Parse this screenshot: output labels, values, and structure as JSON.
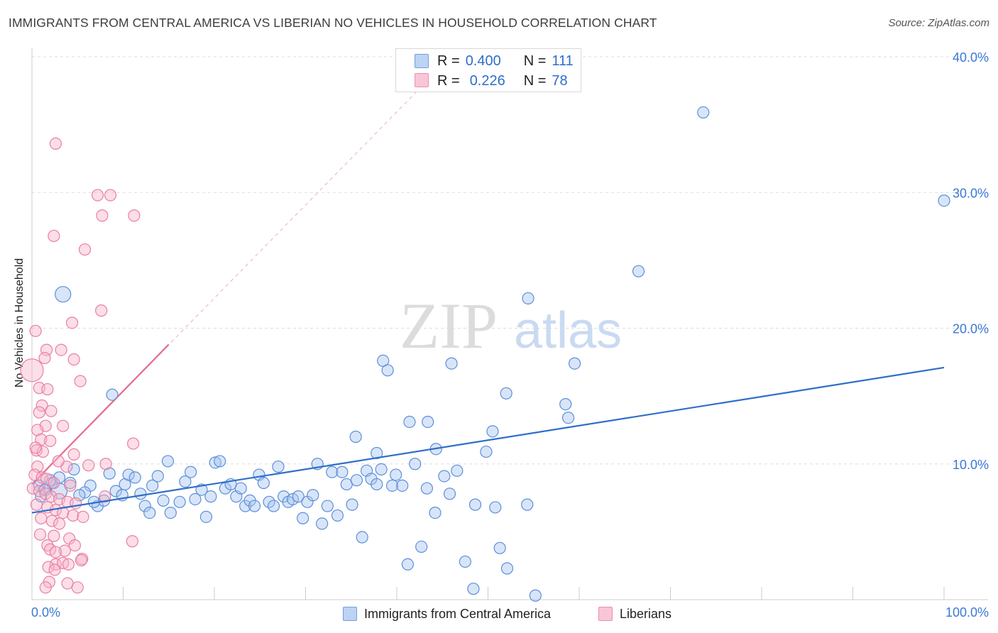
{
  "header": {
    "title": "IMMIGRANTS FROM CENTRAL AMERICA VS LIBERIAN NO VEHICLES IN HOUSEHOLD CORRELATION CHART",
    "source": "Source: ZipAtlas.com"
  },
  "watermark": {
    "part1": "ZIP",
    "part2": "atlas"
  },
  "legend": {
    "r_label": "R =",
    "n_label": "N =",
    "rows": [
      {
        "r": "0.400",
        "n": "111",
        "color": "#a9c6ef",
        "border": "#6e9fe0"
      },
      {
        "r": "0.226",
        "n": "78",
        "color": "#f6b6ca",
        "border": "#ec8fae"
      }
    ]
  },
  "bottom_legend": {
    "items": [
      {
        "label": "Immigrants from Central America",
        "color": "#bcd3f4",
        "border": "#6e9fe0"
      },
      {
        "label": "Liberians",
        "color": "#f8c6d6",
        "border": "#ec8fae"
      }
    ]
  },
  "chart_data": {
    "type": "scatter",
    "title": "IMMIGRANTS FROM CENTRAL AMERICA VS LIBERIAN NO VEHICLES IN HOUSEHOLD CORRELATION CHART",
    "xlabel": "",
    "ylabel": "No Vehicles in Household",
    "xlim": [
      0,
      100
    ],
    "ylim": [
      0,
      40
    ],
    "x_tick_labels": [
      "0.0%",
      "100.0%"
    ],
    "y_tick_labels": [
      "10.0%",
      "20.0%",
      "30.0%",
      "40.0%"
    ],
    "y_ticks": [
      10,
      20,
      30,
      40
    ],
    "grid": true,
    "legend_position": "top-center",
    "colors": {
      "blue_fill": "#a9c6ef",
      "blue_stroke": "#5b8fd9",
      "blue_line": "#2f6ec9",
      "pink_fill": "#f6b6ca",
      "pink_stroke": "#e97fa2",
      "pink_line": "#e56b8f",
      "axis_text": "#3a78d6"
    },
    "series": [
      {
        "name": "Immigrants from Central America",
        "R": 0.4,
        "N": 111,
        "trend": {
          "x": [
            0,
            100
          ],
          "y": [
            6.4,
            17.1
          ]
        },
        "points": [
          [
            73.6,
            35.9
          ],
          [
            100,
            29.4
          ],
          [
            66.5,
            24.2
          ],
          [
            54.4,
            22.2
          ],
          [
            3.4,
            22.5
          ],
          [
            38.5,
            17.6
          ],
          [
            39.0,
            16.9
          ],
          [
            46.0,
            17.4
          ],
          [
            59.5,
            17.4
          ],
          [
            52.0,
            15.2
          ],
          [
            58.5,
            14.4
          ],
          [
            8.8,
            15.1
          ],
          [
            41.4,
            13.1
          ],
          [
            43.4,
            13.1
          ],
          [
            58.8,
            13.4
          ],
          [
            50.5,
            12.4
          ],
          [
            35.5,
            12.0
          ],
          [
            44.3,
            11.1
          ],
          [
            37.8,
            10.8
          ],
          [
            49.8,
            10.9
          ],
          [
            3.0,
            8.0
          ],
          [
            2.2,
            8.6
          ],
          [
            1.5,
            8.1
          ],
          [
            0.8,
            8.4
          ],
          [
            1.0,
            7.6
          ],
          [
            4.6,
            9.6
          ],
          [
            6.4,
            8.4
          ],
          [
            5.8,
            7.9
          ],
          [
            5.2,
            7.7
          ],
          [
            7.2,
            6.9
          ],
          [
            7.9,
            7.3
          ],
          [
            8.5,
            9.3
          ],
          [
            9.2,
            8.0
          ],
          [
            9.9,
            7.7
          ],
          [
            10.2,
            8.5
          ],
          [
            10.6,
            9.2
          ],
          [
            11.3,
            9.0
          ],
          [
            11.9,
            7.8
          ],
          [
            12.4,
            6.9
          ],
          [
            12.9,
            6.4
          ],
          [
            13.2,
            8.4
          ],
          [
            13.8,
            9.1
          ],
          [
            14.4,
            7.3
          ],
          [
            14.9,
            10.2
          ],
          [
            15.2,
            6.4
          ],
          [
            16.2,
            7.2
          ],
          [
            16.8,
            8.7
          ],
          [
            17.4,
            9.4
          ],
          [
            17.9,
            7.4
          ],
          [
            18.6,
            8.1
          ],
          [
            19.1,
            6.1
          ],
          [
            19.6,
            7.6
          ],
          [
            20.1,
            10.1
          ],
          [
            20.6,
            10.2
          ],
          [
            21.2,
            8.2
          ],
          [
            21.8,
            8.5
          ],
          [
            22.4,
            7.6
          ],
          [
            22.9,
            8.2
          ],
          [
            23.4,
            6.9
          ],
          [
            23.9,
            7.3
          ],
          [
            24.4,
            6.9
          ],
          [
            24.9,
            9.2
          ],
          [
            25.4,
            8.6
          ],
          [
            26.0,
            7.2
          ],
          [
            26.5,
            6.9
          ],
          [
            27.0,
            9.8
          ],
          [
            27.6,
            7.6
          ],
          [
            28.1,
            7.2
          ],
          [
            28.6,
            7.4
          ],
          [
            29.2,
            7.6
          ],
          [
            29.7,
            6.0
          ],
          [
            30.2,
            7.2
          ],
          [
            30.8,
            7.7
          ],
          [
            31.3,
            10.0
          ],
          [
            31.8,
            5.6
          ],
          [
            32.4,
            6.9
          ],
          [
            32.9,
            9.4
          ],
          [
            33.5,
            6.2
          ],
          [
            34.0,
            9.4
          ],
          [
            34.5,
            8.5
          ],
          [
            35.1,
            7.0
          ],
          [
            35.6,
            8.8
          ],
          [
            36.2,
            4.6
          ],
          [
            36.7,
            9.5
          ],
          [
            37.2,
            8.9
          ],
          [
            37.8,
            8.5
          ],
          [
            38.3,
            9.6
          ],
          [
            39.5,
            8.4
          ],
          [
            39.9,
            9.2
          ],
          [
            40.6,
            8.4
          ],
          [
            41.2,
            2.6
          ],
          [
            42.0,
            10.0
          ],
          [
            42.7,
            3.9
          ],
          [
            43.3,
            8.2
          ],
          [
            44.2,
            6.4
          ],
          [
            45.2,
            9.1
          ],
          [
            45.8,
            7.8
          ],
          [
            46.6,
            9.5
          ],
          [
            48.4,
            0.8
          ],
          [
            48.6,
            7.0
          ],
          [
            50.8,
            6.8
          ],
          [
            51.3,
            3.8
          ],
          [
            52.1,
            2.3
          ],
          [
            54.3,
            7.0
          ],
          [
            55.2,
            0.3
          ],
          [
            47.5,
            2.8
          ],
          [
            3.0,
            9.0
          ],
          [
            2.0,
            8.8
          ],
          [
            6.8,
            7.2
          ],
          [
            1.4,
            8.1
          ],
          [
            4.2,
            8.6
          ]
        ]
      },
      {
        "name": "Liberians",
        "R": 0.226,
        "N": 78,
        "trend": {
          "x": [
            0,
            15
          ],
          "y": [
            8.5,
            18.8
          ]
        },
        "trend_extended": {
          "x": [
            0,
            43
          ],
          "y": [
            8.5,
            38.0
          ]
        },
        "points": [
          [
            2.6,
            33.6
          ],
          [
            7.2,
            29.8
          ],
          [
            8.6,
            29.8
          ],
          [
            7.7,
            28.3
          ],
          [
            11.2,
            28.3
          ],
          [
            2.4,
            26.8
          ],
          [
            5.8,
            25.8
          ],
          [
            7.6,
            21.3
          ],
          [
            4.4,
            20.4
          ],
          [
            0.4,
            19.8
          ],
          [
            3.2,
            18.4
          ],
          [
            1.6,
            18.4
          ],
          [
            1.4,
            17.8
          ],
          [
            4.6,
            17.7
          ],
          [
            0.0,
            16.9
          ],
          [
            5.3,
            16.1
          ],
          [
            0.8,
            15.6
          ],
          [
            1.7,
            15.5
          ],
          [
            1.1,
            14.3
          ],
          [
            0.8,
            13.8
          ],
          [
            3.4,
            12.8
          ],
          [
            1.5,
            12.8
          ],
          [
            0.6,
            12.5
          ],
          [
            1.0,
            11.8
          ],
          [
            2.0,
            11.7
          ],
          [
            11.1,
            11.5
          ],
          [
            0.5,
            11.0
          ],
          [
            1.2,
            10.9
          ],
          [
            4.6,
            10.7
          ],
          [
            8.1,
            10.0
          ],
          [
            0.6,
            9.8
          ],
          [
            3.8,
            9.8
          ],
          [
            0.3,
            9.2
          ],
          [
            1.1,
            9.0
          ],
          [
            1.6,
            8.9
          ],
          [
            2.4,
            8.6
          ],
          [
            4.2,
            8.4
          ],
          [
            0.1,
            8.2
          ],
          [
            0.8,
            8.0
          ],
          [
            1.5,
            7.8
          ],
          [
            2.1,
            7.6
          ],
          [
            3.0,
            7.4
          ],
          [
            3.9,
            7.2
          ],
          [
            4.8,
            7.1
          ],
          [
            0.5,
            7.0
          ],
          [
            1.7,
            6.8
          ],
          [
            2.6,
            6.6
          ],
          [
            3.4,
            6.4
          ],
          [
            4.5,
            6.2
          ],
          [
            5.6,
            6.1
          ],
          [
            1.0,
            6.0
          ],
          [
            2.2,
            5.8
          ],
          [
            3.0,
            5.6
          ],
          [
            0.9,
            4.8
          ],
          [
            2.4,
            4.7
          ],
          [
            4.1,
            4.5
          ],
          [
            11.0,
            4.3
          ],
          [
            1.7,
            4.0
          ],
          [
            4.7,
            4.0
          ],
          [
            2.0,
            3.7
          ],
          [
            3.6,
            3.6
          ],
          [
            2.6,
            3.5
          ],
          [
            5.5,
            3.0
          ],
          [
            5.4,
            2.9
          ],
          [
            2.6,
            2.6
          ],
          [
            3.4,
            2.7
          ],
          [
            4.0,
            2.6
          ],
          [
            1.8,
            2.4
          ],
          [
            2.5,
            2.2
          ],
          [
            3.9,
            1.2
          ],
          [
            1.9,
            1.3
          ],
          [
            5.0,
            0.9
          ],
          [
            1.5,
            0.9
          ],
          [
            6.2,
            9.9
          ],
          [
            8.0,
            7.6
          ],
          [
            2.9,
            10.2
          ],
          [
            0.4,
            11.2
          ],
          [
            2.1,
            13.9
          ]
        ]
      }
    ]
  }
}
